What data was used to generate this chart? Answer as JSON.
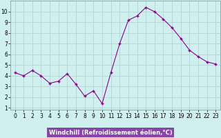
{
  "x": [
    0,
    1,
    2,
    3,
    4,
    5,
    6,
    7,
    8,
    9,
    10,
    11,
    12,
    13,
    14,
    15,
    16,
    17,
    18,
    19,
    20,
    21,
    22,
    23
  ],
  "y": [
    4.3,
    4.0,
    4.5,
    4.0,
    3.3,
    3.5,
    4.2,
    3.2,
    2.1,
    2.6,
    1.4,
    4.3,
    7.0,
    9.2,
    9.6,
    10.4,
    10.0,
    9.3,
    8.5,
    7.5,
    6.4,
    5.8,
    5.3,
    5.1
  ],
  "line_color": "#880088",
  "marker_color": "#880088",
  "bg_color": "#d0f0f0",
  "grid_color": "#b8d8d8",
  "xlabel": "Windchill (Refroidissement éolien,°C)",
  "xlabel_bg": "#8844aa",
  "xlabel_fg": "#ffffff",
  "xlim": [
    -0.5,
    23.5
  ],
  "ylim": [
    0.8,
    11.0
  ],
  "yticks": [
    1,
    2,
    3,
    4,
    5,
    6,
    7,
    8,
    9,
    10
  ],
  "xticks": [
    0,
    1,
    2,
    3,
    4,
    5,
    6,
    7,
    8,
    9,
    10,
    11,
    12,
    13,
    14,
    15,
    16,
    17,
    18,
    19,
    20,
    21,
    22,
    23
  ],
  "tick_fontsize": 5.5,
  "label_fontsize": 6.0
}
